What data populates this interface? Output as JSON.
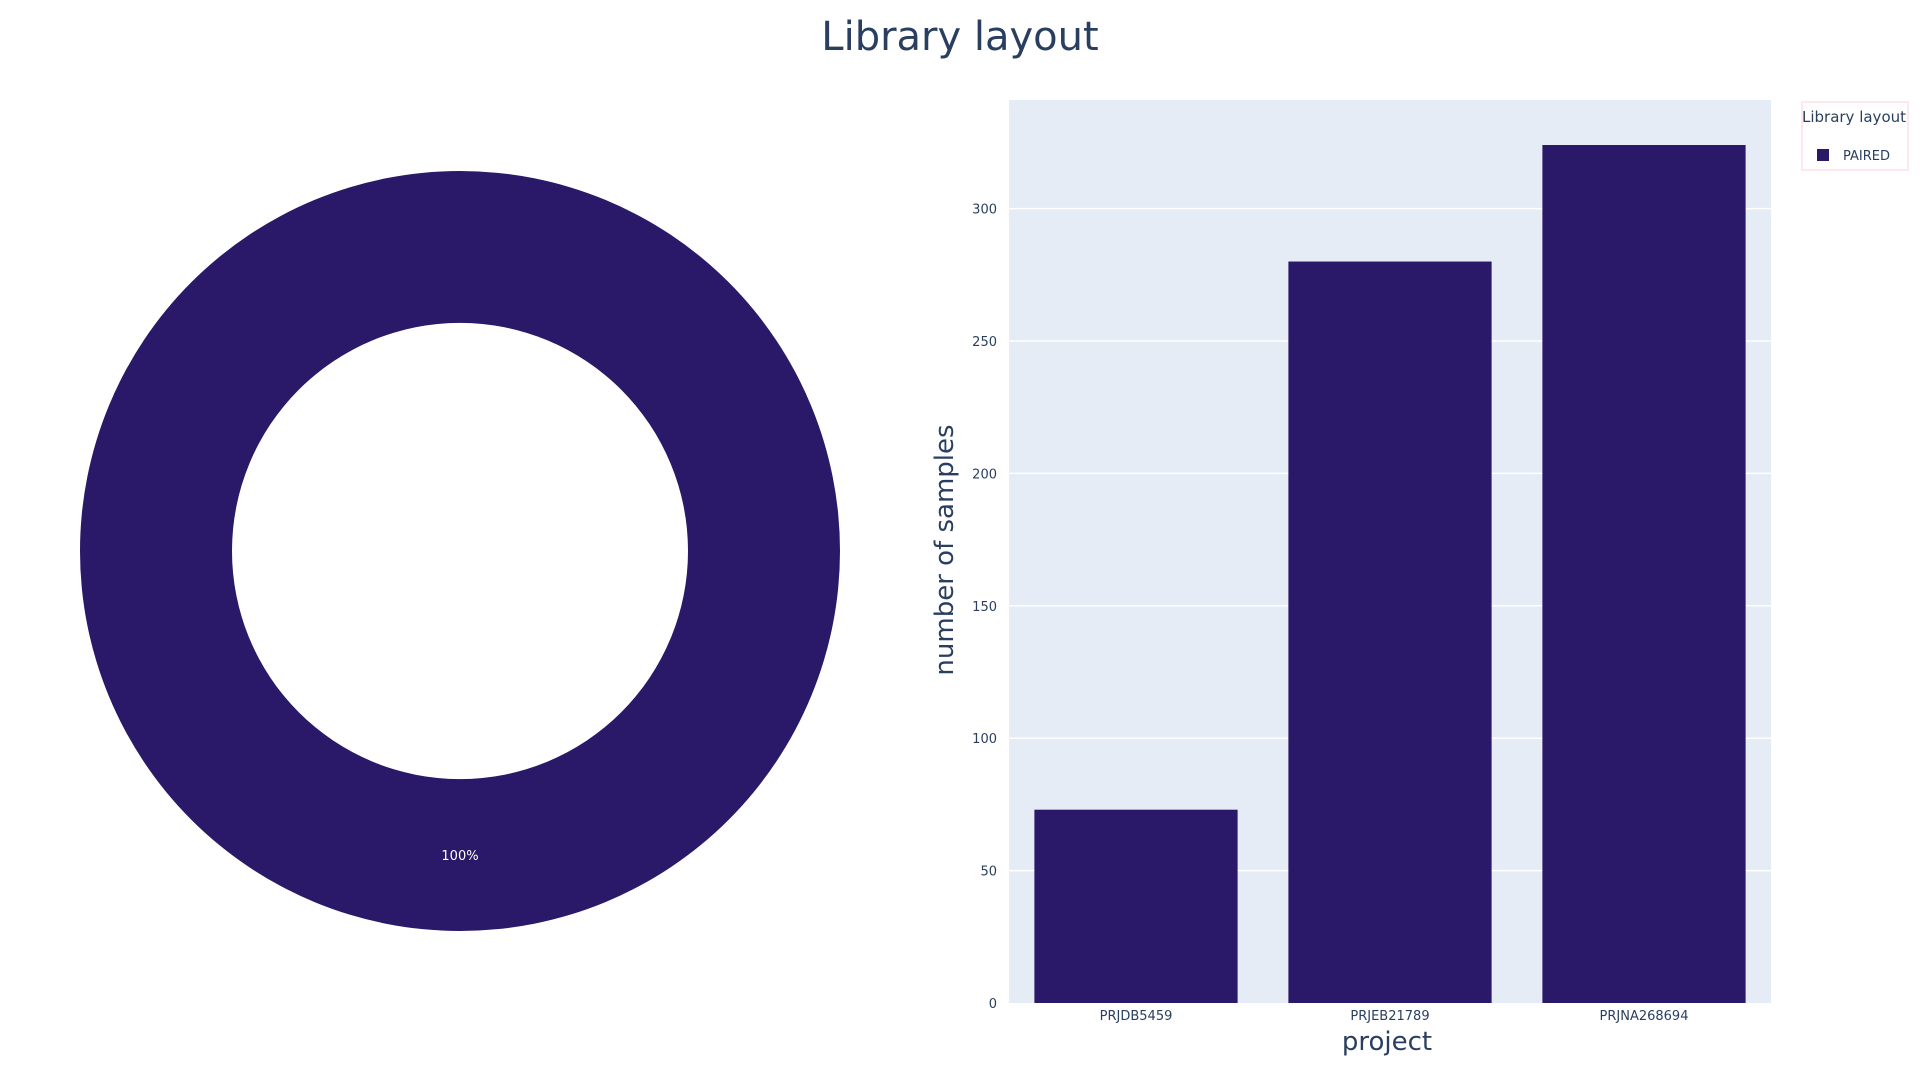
{
  "title": "Library layout",
  "colors": {
    "series": "#2a1868",
    "plot_bg": "#e5ecf6",
    "grid": "#ffffff",
    "text": "#2a3f5f",
    "legend_border": "#ffe8ec",
    "slice_text": "#ffffff"
  },
  "chart_data": [
    {
      "type": "pie",
      "hole": true,
      "labels": [
        "PAIRED"
      ],
      "values": [
        100
      ],
      "text_labels": [
        "100%"
      ]
    },
    {
      "type": "bar",
      "categories": [
        "PRJDB5459",
        "PRJEB21789",
        "PRJNA268694"
      ],
      "series": [
        {
          "name": "PAIRED",
          "values": [
            73,
            280,
            324
          ]
        }
      ],
      "xlabel": "project",
      "ylabel": "number of samples",
      "ylim": [
        0,
        341
      ],
      "yticks": [
        0,
        50,
        100,
        150,
        200,
        250,
        300
      ],
      "grid": true,
      "legend": {
        "title": "Library layout",
        "placement": "top-right",
        "entries": [
          "PAIRED"
        ]
      }
    }
  ]
}
